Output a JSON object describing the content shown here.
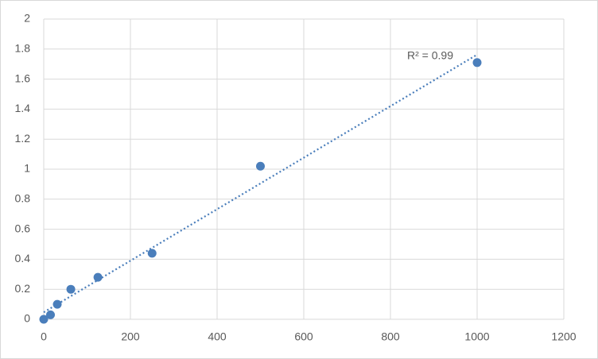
{
  "chart_data": {
    "type": "scatter",
    "annotation": "R² = 0.99",
    "x": [
      0,
      15.6,
      31.25,
      62.5,
      125,
      250,
      500,
      1000
    ],
    "series": [
      {
        "color": "#4a7ebb",
        "values": [
          0,
          0.03,
          0.1,
          0.2,
          0.28,
          0.44,
          1.02,
          1.71
        ]
      }
    ],
    "xlim": [
      0,
      1200
    ],
    "xticks": [
      0,
      200,
      400,
      600,
      800,
      1000,
      1200
    ],
    "ylim": [
      0,
      2
    ],
    "yticks": [
      0,
      0.2,
      0.4,
      0.6,
      0.8,
      1,
      1.2,
      1.4,
      1.6,
      1.8,
      2
    ],
    "grid": true,
    "trendline": "linear"
  }
}
